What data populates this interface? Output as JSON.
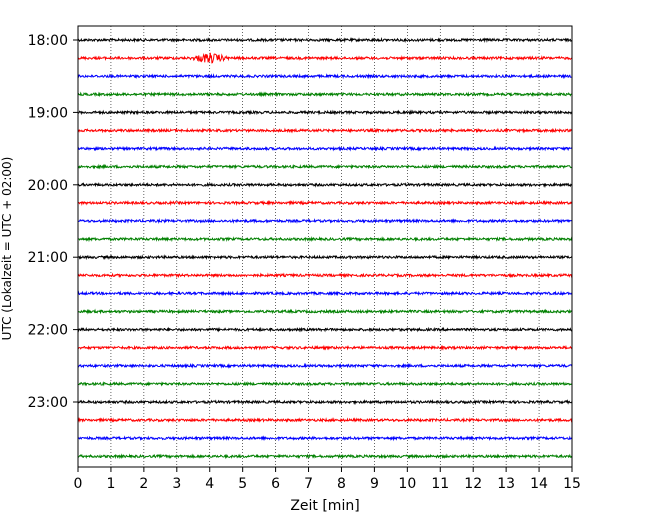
{
  "chart_data": {
    "type": "line",
    "title": "",
    "xlabel": "Zeit  [min]",
    "ylabel": "UTC (Lokalzeit = UTC + 02:00)",
    "xlim": [
      0,
      15
    ],
    "x_ticks": [
      0,
      1,
      2,
      3,
      4,
      5,
      6,
      7,
      8,
      9,
      10,
      11,
      12,
      13,
      14,
      15
    ],
    "y_tick_labels": [
      "18:00",
      "19:00",
      "20:00",
      "21:00",
      "22:00",
      "23:00"
    ],
    "grid": "vertical dotted lines at each minute",
    "row_interval_minutes": 15,
    "colors_cycle": [
      "#000000",
      "#ff0000",
      "#0000ff",
      "#008000"
    ],
    "series": [
      {
        "start": "18:00",
        "color": "#000000"
      },
      {
        "start": "18:15",
        "color": "#ff0000",
        "event": {
          "x_min": 3.4,
          "x_max": 4.6,
          "peak_min": 4.0
        }
      },
      {
        "start": "18:30",
        "color": "#0000ff"
      },
      {
        "start": "18:45",
        "color": "#008000"
      },
      {
        "start": "19:00",
        "color": "#000000"
      },
      {
        "start": "19:15",
        "color": "#ff0000"
      },
      {
        "start": "19:30",
        "color": "#0000ff"
      },
      {
        "start": "19:45",
        "color": "#008000"
      },
      {
        "start": "20:00",
        "color": "#000000"
      },
      {
        "start": "20:15",
        "color": "#ff0000"
      },
      {
        "start": "20:30",
        "color": "#0000ff"
      },
      {
        "start": "20:45",
        "color": "#008000"
      },
      {
        "start": "21:00",
        "color": "#000000"
      },
      {
        "start": "21:15",
        "color": "#ff0000"
      },
      {
        "start": "21:30",
        "color": "#0000ff"
      },
      {
        "start": "21:45",
        "color": "#008000"
      },
      {
        "start": "22:00",
        "color": "#000000"
      },
      {
        "start": "22:15",
        "color": "#ff0000"
      },
      {
        "start": "22:30",
        "color": "#0000ff"
      },
      {
        "start": "22:45",
        "color": "#008000"
      },
      {
        "start": "23:00",
        "color": "#000000"
      },
      {
        "start": "23:15",
        "color": "#ff0000"
      },
      {
        "start": "23:30",
        "color": "#0000ff"
      },
      {
        "start": "23:45",
        "color": "#008000"
      }
    ]
  }
}
